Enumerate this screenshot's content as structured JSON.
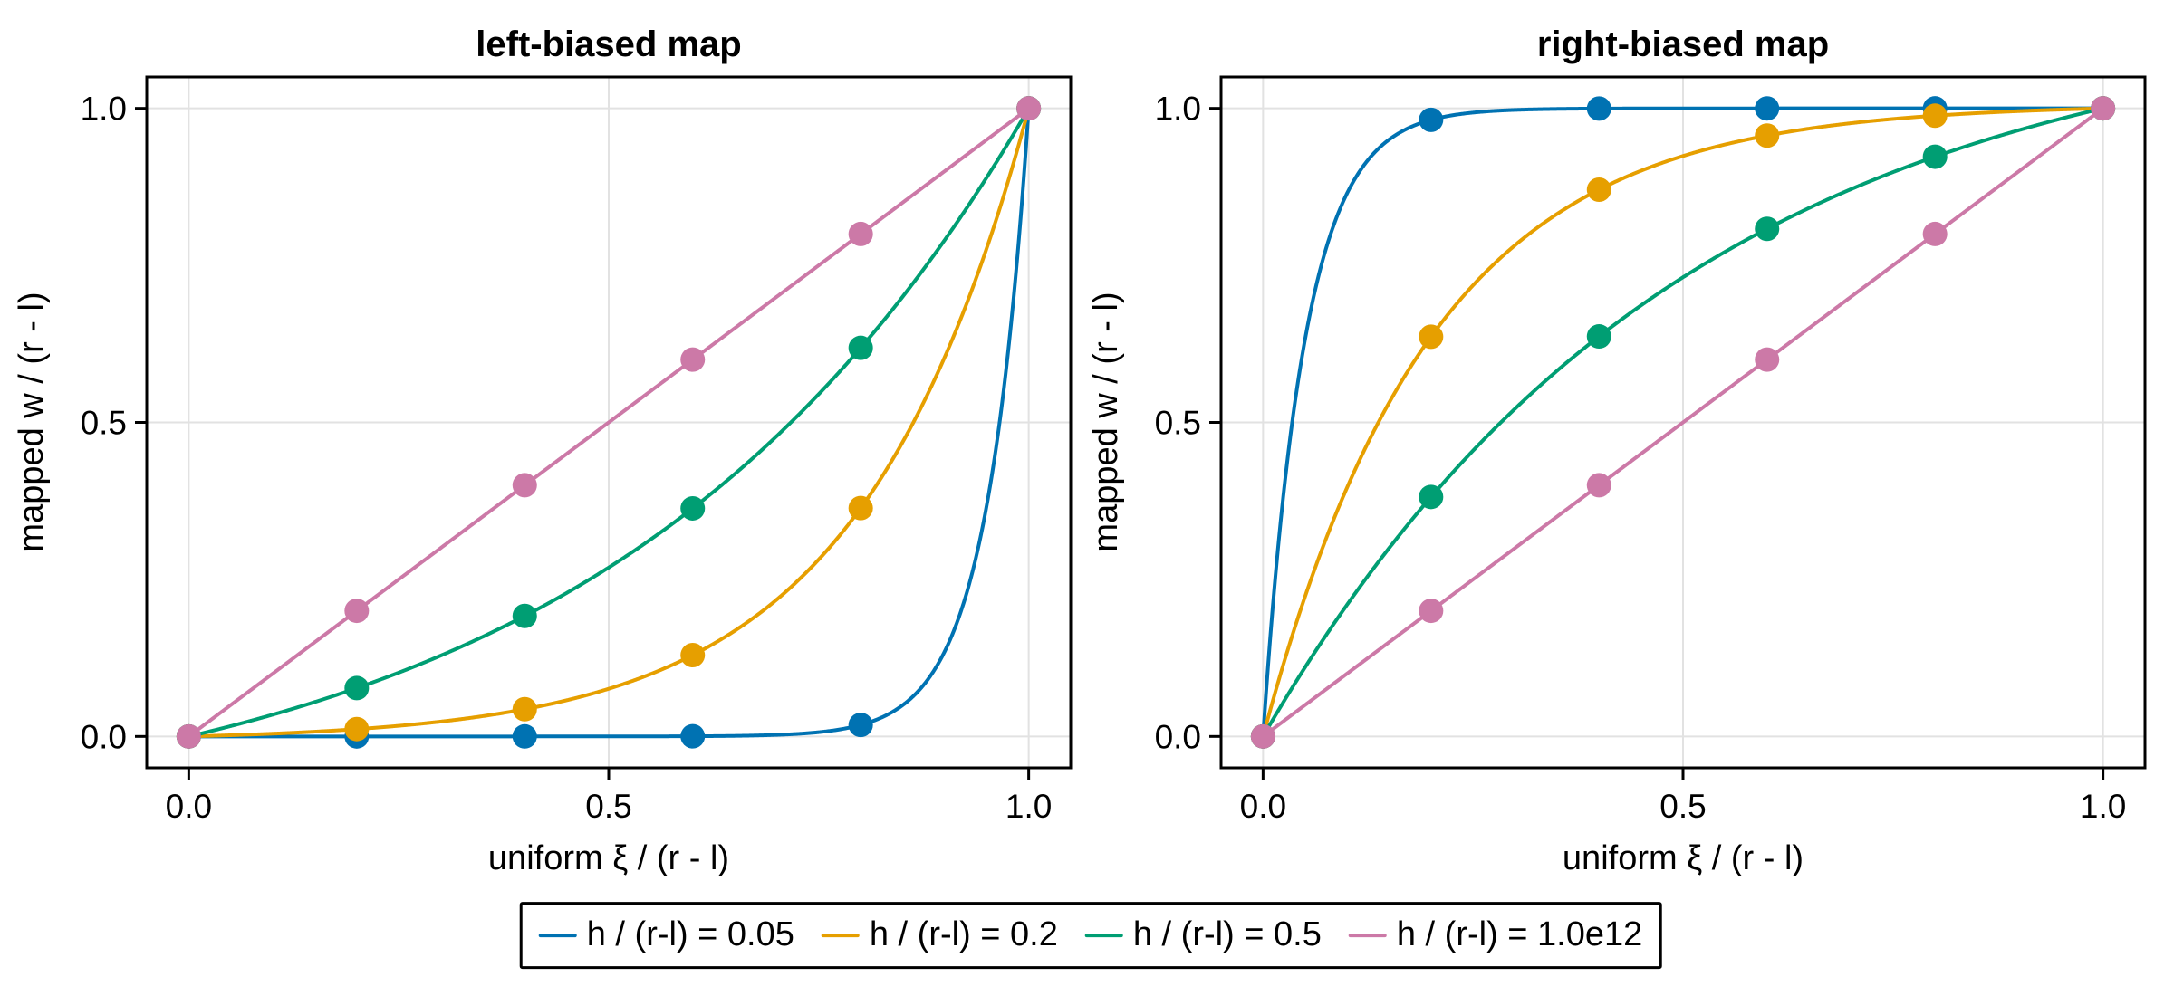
{
  "chart_data": [
    {
      "type": "line",
      "panel": "left",
      "title": "left-biased map",
      "xlabel": "uniform ξ / (r - l)",
      "ylabel": "mapped w / (r - l)",
      "map": "left",
      "grid": true,
      "xlim": [
        -0.05,
        1.05
      ],
      "ylim": [
        -0.05,
        1.05
      ],
      "xticks": {
        "values": [
          0.0,
          0.5,
          1.0
        ],
        "labels": [
          "0.0",
          "0.5",
          "1.0"
        ]
      },
      "yticks": {
        "values": [
          0.0,
          0.5,
          1.0
        ],
        "labels": [
          "0.0",
          "0.5",
          "1.0"
        ]
      },
      "series": [
        {
          "name": "h / (r-l) = 0.05",
          "h_over_rl": 0.05,
          "color": "#0072B2",
          "marker_x": [
            0,
            0.2,
            0.4,
            0.6,
            0.8,
            1
          ],
          "marker_y": [
            0,
            1e-07,
            6e-06,
            0.0003,
            0.0183,
            1
          ]
        },
        {
          "name": "h / (r-l) = 0.2",
          "h_over_rl": 0.2,
          "color": "#E69F00",
          "marker_x": [
            0,
            0.2,
            0.4,
            0.6,
            0.8,
            1
          ],
          "marker_y": [
            0,
            0.0117,
            0.0433,
            0.1295,
            0.3636,
            1
          ]
        },
        {
          "name": "h / (r-l) = 0.5",
          "h_over_rl": 0.5,
          "color": "#009E73",
          "marker_x": [
            0,
            0.2,
            0.4,
            0.6,
            0.8,
            1
          ],
          "marker_y": [
            0,
            0.077,
            0.1918,
            0.3631,
            0.6187,
            1
          ]
        },
        {
          "name": "h / (r-l) = 1.0e12",
          "h_over_rl": 1000000000000.0,
          "color": "#CC79A7",
          "marker_x": [
            0,
            0.2,
            0.4,
            0.6,
            0.8,
            1
          ],
          "marker_y": [
            0,
            0.2,
            0.4,
            0.6,
            0.8,
            1
          ]
        }
      ]
    },
    {
      "type": "line",
      "panel": "right",
      "title": "right-biased map",
      "xlabel": "uniform ξ / (r - l)",
      "ylabel": "mapped w / (r - l)",
      "map": "right",
      "grid": true,
      "xlim": [
        -0.05,
        1.05
      ],
      "ylim": [
        -0.05,
        1.05
      ],
      "xticks": {
        "values": [
          0.0,
          0.5,
          1.0
        ],
        "labels": [
          "0.0",
          "0.5",
          "1.0"
        ]
      },
      "yticks": {
        "values": [
          0.0,
          0.5,
          1.0
        ],
        "labels": [
          "0.0",
          "0.5",
          "1.0"
        ]
      },
      "series": [
        {
          "name": "h / (r-l) = 0.05",
          "h_over_rl": 0.05,
          "color": "#0072B2",
          "marker_x": [
            0,
            0.2,
            0.4,
            0.6,
            0.8,
            1
          ],
          "marker_y": [
            0,
            0.9817,
            0.9997,
            0.999994,
            0.9999999,
            1
          ]
        },
        {
          "name": "h / (r-l) = 0.2",
          "h_over_rl": 0.2,
          "color": "#E69F00",
          "marker_x": [
            0,
            0.2,
            0.4,
            0.6,
            0.8,
            1
          ],
          "marker_y": [
            0,
            0.6364,
            0.8705,
            0.9567,
            0.9883,
            1
          ]
        },
        {
          "name": "h / (r-l) = 0.5",
          "h_over_rl": 0.5,
          "color": "#009E73",
          "marker_x": [
            0,
            0.2,
            0.4,
            0.6,
            0.8,
            1
          ],
          "marker_y": [
            0,
            0.3813,
            0.6369,
            0.8082,
            0.923,
            1
          ]
        },
        {
          "name": "h / (r-l) = 1.0e12",
          "h_over_rl": 1000000000000.0,
          "color": "#CC79A7",
          "marker_x": [
            0,
            0.2,
            0.4,
            0.6,
            0.8,
            1
          ],
          "marker_y": [
            0,
            0.2,
            0.4,
            0.6,
            0.8,
            1
          ]
        }
      ]
    }
  ],
  "legend": {
    "entries": [
      {
        "label": "h / (r-l) = 0.05",
        "color": "#0072B2"
      },
      {
        "label": "h / (r-l) = 0.2",
        "color": "#E69F00"
      },
      {
        "label": "h / (r-l) = 0.5",
        "color": "#009E73"
      },
      {
        "label": "h / (r-l) = 1.0e12",
        "color": "#CC79A7"
      }
    ],
    "position": "bottom-center"
  },
  "style_colors": {
    "grid": "#e2e2e2",
    "spine": "#000000",
    "background": "#ffffff"
  }
}
